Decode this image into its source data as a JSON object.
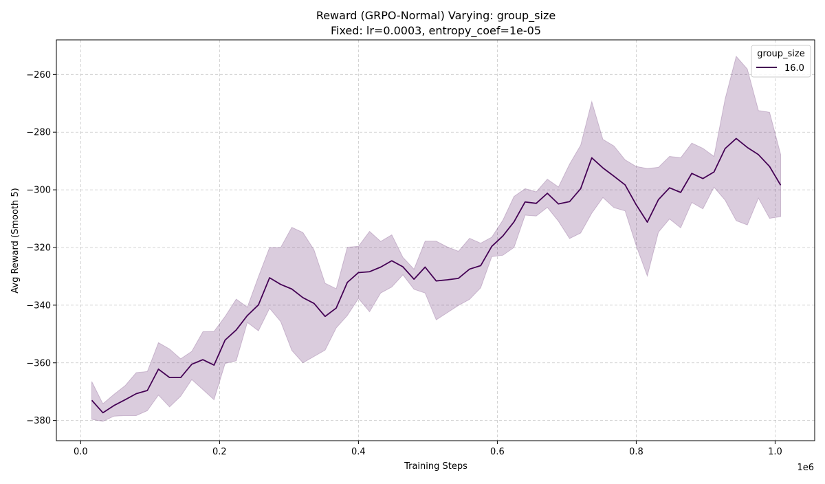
{
  "chart_data": {
    "type": "line",
    "title": "Reward (GRPO-Normal) Varying: group_size",
    "subtitle": "Fixed: lr=0.0003, entropy_coef=1e-05",
    "xlabel": "Training Steps",
    "ylabel": "Avg Reward (Smooth 5)",
    "x_offset_text": "1e6",
    "xlim": [
      -35000,
      1057000
    ],
    "ylim": [
      -387,
      -248
    ],
    "x_ticks": [
      0,
      200000,
      400000,
      600000,
      800000,
      1000000
    ],
    "x_tick_labels": [
      "0.0",
      "0.2",
      "0.4",
      "0.6",
      "0.8",
      "1.0"
    ],
    "y_ticks": [
      -380,
      -360,
      -340,
      -320,
      -300,
      -280,
      -260
    ],
    "y_tick_labels": [
      "−380",
      "−360",
      "−340",
      "−320",
      "−300",
      "−280",
      "−260"
    ],
    "grid": true,
    "legend": {
      "title": "group_size",
      "placement": "top-right"
    },
    "series": [
      {
        "name": "16.0",
        "color": "#440154",
        "band_color": "#440154",
        "x": [
          16000,
          32000,
          48000,
          64000,
          80000,
          96000,
          112000,
          128000,
          144000,
          160000,
          176000,
          192000,
          208000,
          224000,
          240000,
          256000,
          272000,
          288000,
          304000,
          320000,
          336000,
          352000,
          368000,
          384000,
          400000,
          416000,
          432000,
          448000,
          464000,
          480000,
          496000,
          512000,
          528000,
          544000,
          560000,
          576000,
          592000,
          608000,
          624000,
          640000,
          656000,
          672000,
          688000,
          704000,
          720000,
          736000,
          752000,
          768000,
          784000,
          800000,
          816000,
          832000,
          848000,
          864000,
          880000,
          896000,
          912000,
          928000,
          944000,
          960000,
          976000,
          992000,
          1008000
        ],
        "y": [
          -373,
          -377.3,
          -374.8,
          -372.8,
          -370.7,
          -369.6,
          -362.2,
          -365.1,
          -365.1,
          -360.5,
          -358.9,
          -360.8,
          -352.1,
          -348.6,
          -343.6,
          -339.9,
          -330.5,
          -332.8,
          -334.4,
          -337.4,
          -339.4,
          -343.9,
          -341,
          -332.1,
          -328.7,
          -328.4,
          -326.8,
          -324.6,
          -326.7,
          -331,
          -326.8,
          -331.6,
          -331.2,
          -330.7,
          -327.5,
          -326.3,
          -319.6,
          -316,
          -311.1,
          -304.2,
          -304.7,
          -301.2,
          -304.9,
          -304.1,
          -299.6,
          -288.9,
          -292.4,
          -295.3,
          -298.3,
          -305.2,
          -311.2,
          -303.4,
          -299.3,
          -300.9,
          -294.3,
          -296.1,
          -293.8,
          -285.7,
          -282.2,
          -285.3,
          -287.8,
          -291.9,
          -298.4
        ],
        "upper": [
          -366.5,
          -374.2,
          -370.9,
          -367.9,
          -363.4,
          -363,
          -353,
          -355.2,
          -358.6,
          -356,
          -349.2,
          -349.1,
          -343.9,
          -337.9,
          -340.7,
          -330.1,
          -320,
          -320,
          -313,
          -314.8,
          -320.8,
          -332.4,
          -334.3,
          -319.9,
          -319.6,
          -314.4,
          -317.9,
          -315.6,
          -323.4,
          -327.5,
          -317.8,
          -317.8,
          -319.8,
          -321.3,
          -316.8,
          -318.5,
          -316.4,
          -310.5,
          -302.3,
          -299.6,
          -300.7,
          -296.3,
          -299,
          -291.1,
          -284.5,
          -269.4,
          -282.5,
          -284.8,
          -289.6,
          -291.9,
          -292.6,
          -292.2,
          -288.4,
          -288.9,
          -283.8,
          -285.6,
          -288.4,
          -268.5,
          -253.7,
          -258.1,
          -272.5,
          -273.1,
          -287.7
        ],
        "lower": [
          -379.6,
          -380.3,
          -378.5,
          -378.3,
          -378.3,
          -376.6,
          -371.2,
          -375.3,
          -371.6,
          -365.8,
          -369.3,
          -372.8,
          -360.2,
          -359.3,
          -346,
          -348.9,
          -341.1,
          -345.7,
          -355.7,
          -360,
          -357.8,
          -355.6,
          -347.9,
          -343.6,
          -337.7,
          -342.3,
          -335.8,
          -333.7,
          -329.5,
          -334.5,
          -335.8,
          -345.1,
          -342.6,
          -340.1,
          -338,
          -334,
          -323.2,
          -322.7,
          -320,
          -308.8,
          -309.1,
          -306.1,
          -310.9,
          -316.9,
          -315,
          -308.1,
          -302.7,
          -306.2,
          -307.3,
          -319.4,
          -329.9,
          -314.7,
          -310.1,
          -313.2,
          -304.4,
          -306.6,
          -299.1,
          -303.6,
          -310.7,
          -312.2,
          -302.9,
          -309.9,
          -309.3
        ]
      }
    ]
  }
}
